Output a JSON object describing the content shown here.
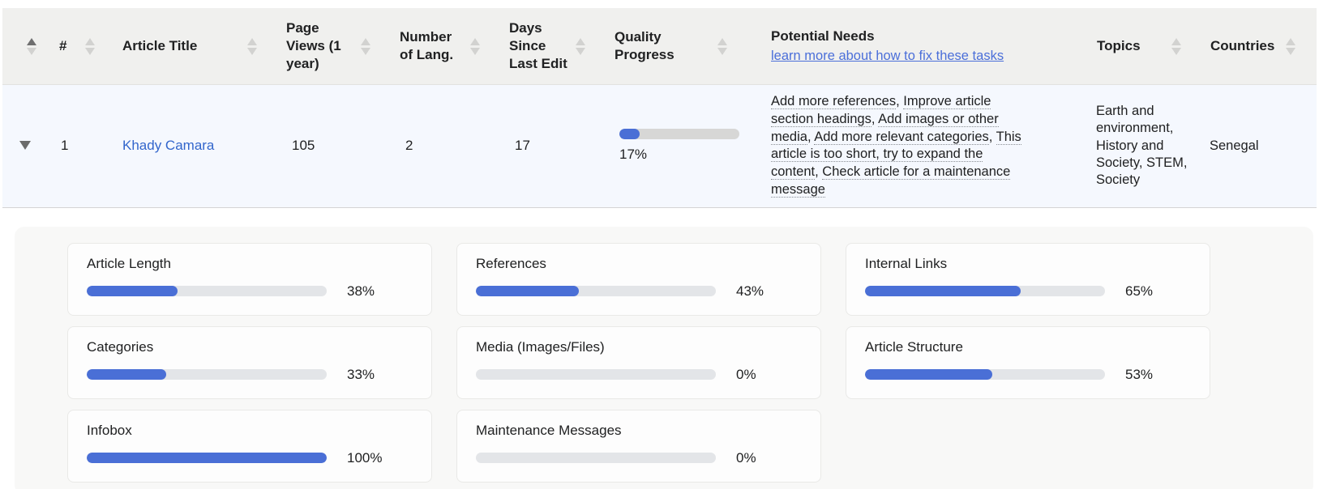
{
  "colors": {
    "accent_blue": "#4a6fd6",
    "link_blue": "#3366cc",
    "learn_more_blue": "#4b6fd9",
    "header_bg": "#f0f0ee",
    "row_bg": "#f5f8fe",
    "panel_bg": "#f8f8f7",
    "track_gray": "#e3e5e8"
  },
  "table": {
    "columns": [
      {
        "label": "",
        "sorted": "asc"
      },
      {
        "label": "#"
      },
      {
        "label": "Article Title"
      },
      {
        "label": "Page Views (1 year)"
      },
      {
        "label": "Number of Lang."
      },
      {
        "label": "Days Since Last Edit"
      },
      {
        "label": "Quality Progress"
      },
      {
        "label": "Potential Needs",
        "link_label": "learn more about how to fix these tasks"
      },
      {
        "label": "Topics"
      },
      {
        "label": "Countries"
      }
    ],
    "row": {
      "rank": "1",
      "article_title": "Khady Camara",
      "page_views": "105",
      "num_langs": "2",
      "days_since_edit": "17",
      "quality": {
        "percent": 17,
        "label": "17%"
      },
      "potential_needs": [
        "Add more references",
        "Improve article section headings",
        "Add images or other media",
        "Add more relevant categories",
        "This article is too short, try to expand the content",
        "Check article for a maintenance message"
      ],
      "topics": "Earth and environment, History and Society, STEM, Society",
      "countries": "Senegal"
    }
  },
  "details": {
    "metrics": [
      {
        "label": "Article Length",
        "percent": 38,
        "percent_label": "38%"
      },
      {
        "label": "References",
        "percent": 43,
        "percent_label": "43%"
      },
      {
        "label": "Internal Links",
        "percent": 65,
        "percent_label": "65%"
      },
      {
        "label": "Categories",
        "percent": 33,
        "percent_label": "33%"
      },
      {
        "label": "Media (Images/Files)",
        "percent": 0,
        "percent_label": "0%"
      },
      {
        "label": "Article Structure",
        "percent": 53,
        "percent_label": "53%"
      },
      {
        "label": "Infobox",
        "percent": 100,
        "percent_label": "100%"
      },
      {
        "label": "Maintenance Messages",
        "percent": 0,
        "percent_label": "0%"
      }
    ]
  }
}
